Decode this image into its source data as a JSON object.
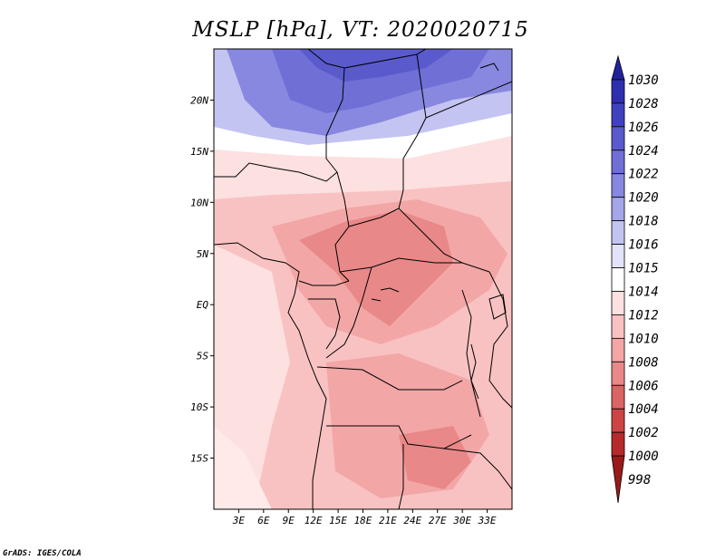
{
  "title": "MSLP [hPa], VT: 2020020715",
  "credit": "GrADS: IGES/COLA",
  "map": {
    "lon_range": [
      0,
      36
    ],
    "lat_range": [
      -20,
      25
    ],
    "lat_ticks": [
      {
        "lat": 20,
        "label": "20N"
      },
      {
        "lat": 15,
        "label": "15N"
      },
      {
        "lat": 10,
        "label": "10N"
      },
      {
        "lat": 5,
        "label": "5N"
      },
      {
        "lat": 0,
        "label": "EQ"
      },
      {
        "lat": -5,
        "label": "5S"
      },
      {
        "lat": -10,
        "label": "10S"
      },
      {
        "lat": -15,
        "label": "15S"
      }
    ],
    "lon_ticks": [
      {
        "lon": 3,
        "label": "3E"
      },
      {
        "lon": 6,
        "label": "6E"
      },
      {
        "lon": 9,
        "label": "9E"
      },
      {
        "lon": 12,
        "label": "12E"
      },
      {
        "lon": 15,
        "label": "15E"
      },
      {
        "lon": 18,
        "label": "18E"
      },
      {
        "lon": 21,
        "label": "21E"
      },
      {
        "lon": 24,
        "label": "24E"
      },
      {
        "lon": 27,
        "label": "27E"
      },
      {
        "lon": 30,
        "label": "30E"
      },
      {
        "lon": 33,
        "label": "33E"
      }
    ]
  },
  "colorbar": {
    "levels": [
      "1030",
      "1028",
      "1026",
      "1024",
      "1022",
      "1020",
      "1018",
      "1016",
      "1015",
      "1014",
      "1012",
      "1010",
      "1008",
      "1006",
      "1004",
      "1002",
      "1000",
      "998"
    ],
    "colors": [
      "#22229b",
      "#2e2eae",
      "#4141c0",
      "#5a5acc",
      "#6f6fd6",
      "#8888e0",
      "#a5a5ea",
      "#c4c4f2",
      "#e2e2f9",
      "#ffffff",
      "#fde0e0",
      "#f9c2c2",
      "#f3a6a6",
      "#e98888",
      "#db6464",
      "#cc4444",
      "#b52a2a",
      "#9b1a1a"
    ]
  },
  "fields": [
    {
      "name": "sahara-high-north",
      "color": "#4141c0",
      "level": "1024"
    },
    {
      "name": "sahara-high-core",
      "color": "#5a5acc",
      "level": "1022"
    },
    {
      "name": "sahara-1020",
      "color": "#8888e0",
      "level": "1020"
    },
    {
      "name": "sahel-1016",
      "color": "#c4c4f2",
      "level": "1016"
    },
    {
      "name": "sahel-1014",
      "color": "#ffffff",
      "level": "1014"
    },
    {
      "name": "west-africa-1012",
      "color": "#fde0e0",
      "level": "1012"
    },
    {
      "name": "central-1010",
      "color": "#f9c2c2",
      "level": "1010"
    },
    {
      "name": "central-low-1008",
      "color": "#f3a6a6",
      "level": "1008"
    },
    {
      "name": "central-low-1006",
      "color": "#e98888",
      "level": "1006"
    },
    {
      "name": "atlantic-1012",
      "color": "#fde0e0",
      "level": "1012"
    }
  ]
}
